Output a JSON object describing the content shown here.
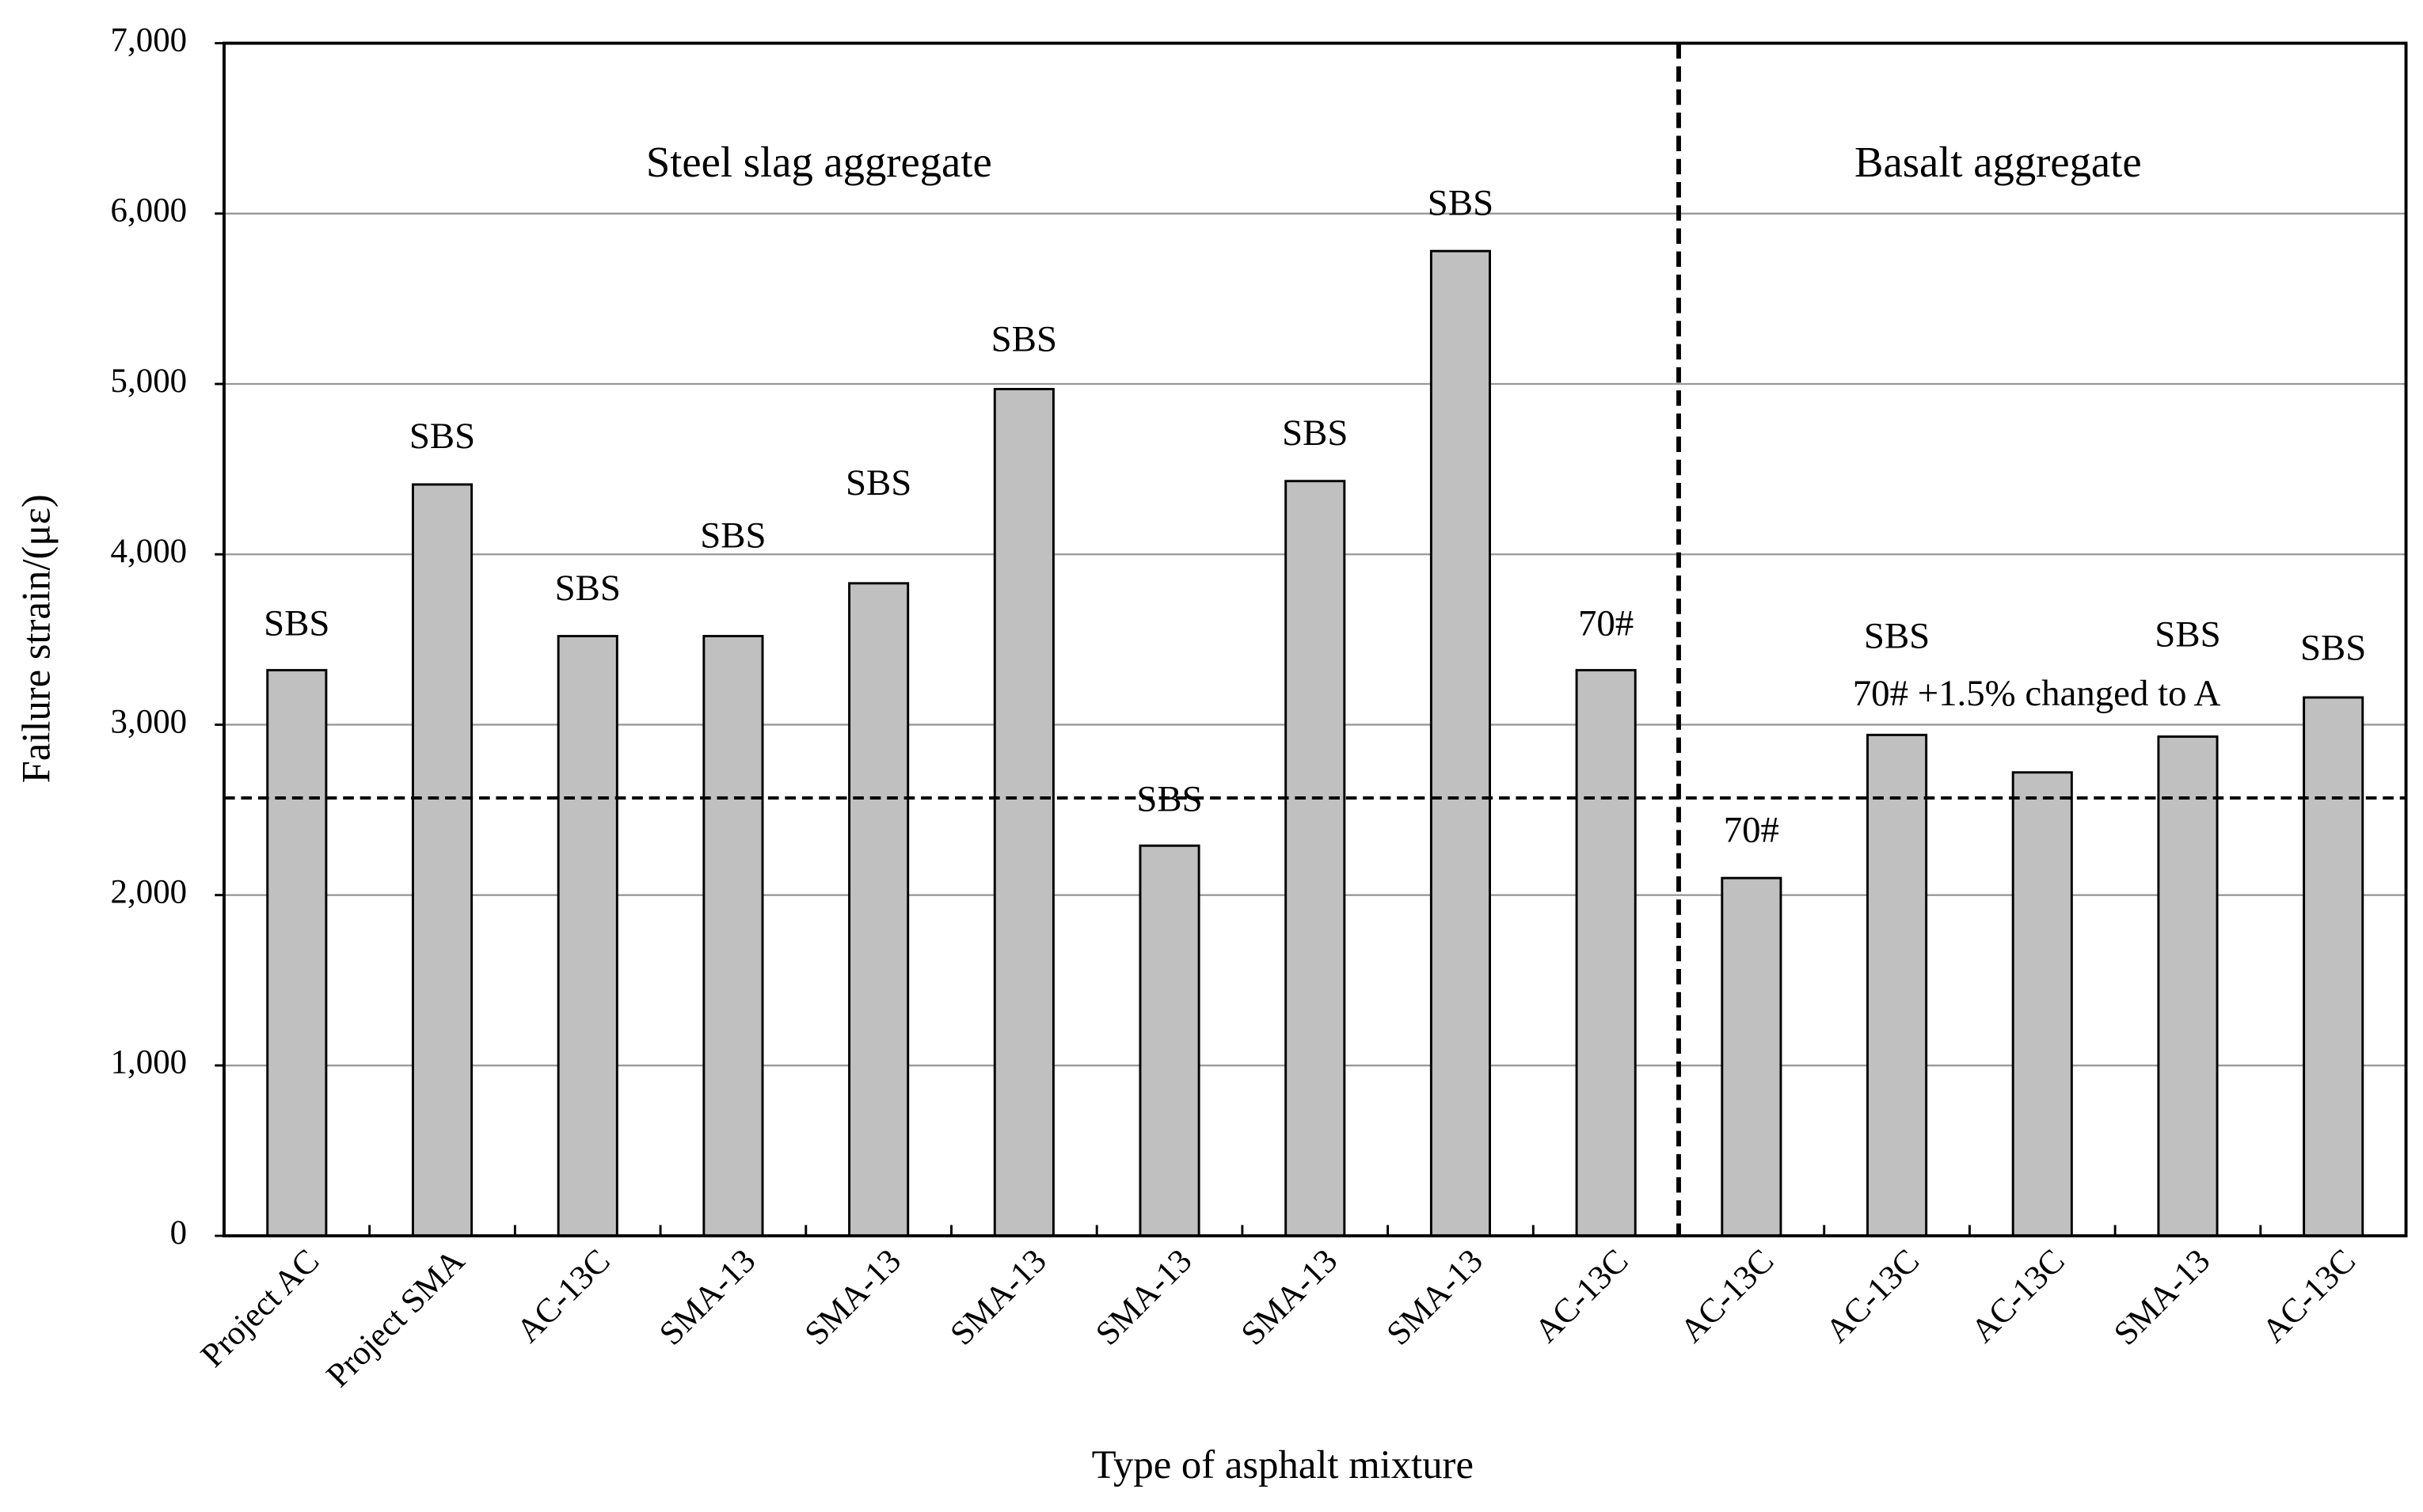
{
  "chart_data": {
    "type": "bar",
    "x_label": "Type of asphalt mixture",
    "y_label": "Failure strain/(με)",
    "categories": [
      "Project AC",
      "Project SMA",
      "AC-13C",
      "SMA-13",
      "SMA-13",
      "SMA-13",
      "SMA-13",
      "SMA-13",
      "SMA-13",
      "AC-13C",
      "AC-13C",
      "AC-13C",
      "AC-13C",
      "SMA-13",
      "AC-13C"
    ],
    "values": [
      3320,
      4410,
      3520,
      3520,
      3830,
      4970,
      2290,
      4430,
      5780,
      3320,
      2100,
      2940,
      2720,
      2930,
      3160
    ],
    "bar_labels": [
      "SBS",
      "SBS",
      "SBS",
      "SBS",
      "SBS",
      "SBS",
      "SBS",
      "SBS",
      "SBS",
      "70#",
      "70#",
      "SBS",
      "70# +1.5% changed to A",
      "SBS",
      "SBS"
    ],
    "color": "#c0c0c0",
    "regions": [
      "Steel slag aggregate",
      "Basalt aggregate"
    ],
    "reference_line": 2570,
    "ylim": [
      0,
      7000
    ],
    "yticks": [
      0,
      {
        "value": 1000,
        "label": "1,000"
      },
      {
        "value": 2000,
        "label": "2,000"
      },
      {
        "value": 3000,
        "label": "3,000"
      },
      {
        "value": 4000,
        "label": "4,000"
      },
      {
        "value": 5000,
        "label": "5,000"
      },
      {
        "value": 6000,
        "label": "6,000"
      },
      {
        "value": 7000,
        "label": "7,000"
      }
    ],
    "grid": true
  }
}
